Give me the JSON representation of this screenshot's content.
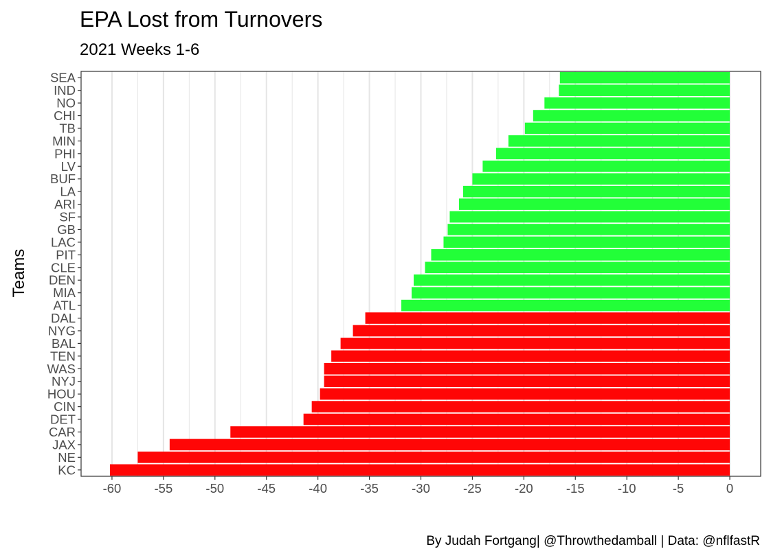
{
  "chart_data": {
    "type": "bar",
    "orientation": "horizontal",
    "title": "EPA Lost from Turnovers",
    "subtitle": "2021 Weeks 1-6",
    "caption": "By Judah Fortgang| @Throwthedamball | Data: @nflfastR",
    "xlabel": "",
    "ylabel": "Teams",
    "xlim": [
      -63.0,
      3.0
    ],
    "x_ticks": [
      -60,
      -55,
      -50,
      -45,
      -40,
      -35,
      -30,
      -25,
      -20,
      -15,
      -10,
      -5,
      0
    ],
    "grid": "vertical",
    "colors": {
      "above_threshold": "#22ff38",
      "below_threshold": "#ff0606",
      "panel_border": "#333333",
      "grid": "#e5e5e5"
    },
    "categories": [
      "SEA",
      "IND",
      "NO",
      "CHI",
      "TB",
      "MIN",
      "PHI",
      "LV",
      "BUF",
      "LA",
      "ARI",
      "SF",
      "GB",
      "LAC",
      "PIT",
      "CLE",
      "DEN",
      "MIA",
      "ATL",
      "DAL",
      "NYG",
      "BAL",
      "TEN",
      "WAS",
      "NYJ",
      "HOU",
      "CIN",
      "DET",
      "CAR",
      "JAX",
      "NE",
      "KC"
    ],
    "values": [
      -16.5,
      -16.6,
      -18.0,
      -19.1,
      -19.9,
      -21.5,
      -22.7,
      -24.0,
      -25.0,
      -25.9,
      -26.3,
      -27.2,
      -27.4,
      -27.8,
      -29.0,
      -29.6,
      -30.7,
      -30.9,
      -31.9,
      -35.4,
      -36.6,
      -37.8,
      -38.7,
      -39.4,
      -39.4,
      -39.8,
      -40.6,
      -41.4,
      -48.5,
      -54.4,
      -57.5,
      -60.2
    ],
    "series_colors": [
      "above_threshold",
      "above_threshold",
      "above_threshold",
      "above_threshold",
      "above_threshold",
      "above_threshold",
      "above_threshold",
      "above_threshold",
      "above_threshold",
      "above_threshold",
      "above_threshold",
      "above_threshold",
      "above_threshold",
      "above_threshold",
      "above_threshold",
      "above_threshold",
      "above_threshold",
      "above_threshold",
      "above_threshold",
      "below_threshold",
      "below_threshold",
      "below_threshold",
      "below_threshold",
      "below_threshold",
      "below_threshold",
      "below_threshold",
      "below_threshold",
      "below_threshold",
      "below_threshold",
      "below_threshold",
      "below_threshold",
      "below_threshold"
    ]
  }
}
